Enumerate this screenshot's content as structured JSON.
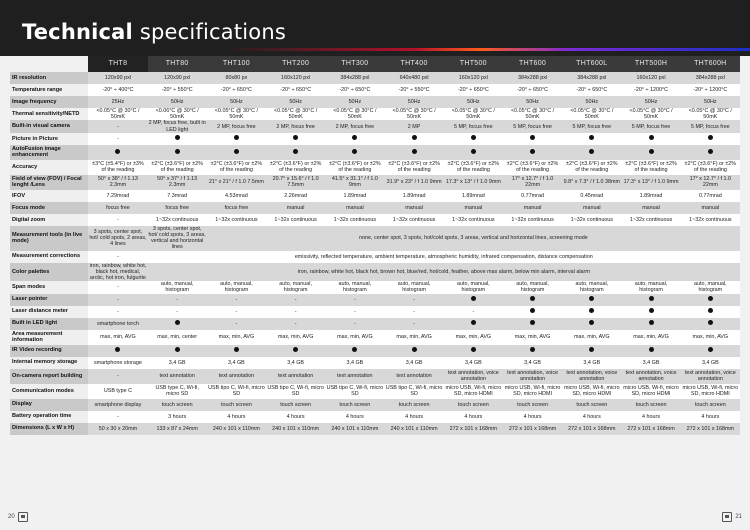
{
  "title_bold": "Technical",
  "title_light": " specifications",
  "models": [
    "THT8",
    "THT80",
    "THT100",
    "THT200",
    "THT300",
    "THT400",
    "THT500",
    "THT600",
    "THT600L",
    "THT500H",
    "THT600H"
  ],
  "rows": [
    {
      "label": "IR resolution",
      "cells": [
        "120x90 pxl",
        "120x90 pxl",
        "80x80 px",
        "160x120 pxl",
        "384x288 pxl",
        "640x480 pxl",
        "160x120 pxl",
        "384x288 pxl",
        "384x288 pxl",
        "160x120 pxl",
        "384x288 pxl"
      ]
    },
    {
      "label": "Temperature range",
      "cells": [
        "-20° ÷ 400°C",
        "-20° ÷ 550°C",
        "-20° ÷ 650°C",
        "-20° ÷ 650°C",
        "-20° ÷ 650°C",
        "-20° ÷ 550°C",
        "-20° ÷ 650°C",
        "-20° ÷ 650°C",
        "-20° ÷ 650°C",
        "-20° ÷ 1200°C",
        "-20° ÷ 1200°C"
      ]
    },
    {
      "label": "Image frequency",
      "cells": [
        "25Hz",
        "50Hz",
        "50Hz",
        "50Hz",
        "50Hz",
        "50Hz",
        "50Hz",
        "50Hz",
        "50Hz",
        "50Hz",
        "50Hz"
      ]
    },
    {
      "label": "Thermal sensitivity/NETD",
      "cells": [
        "<0.05°C @ 30°C / 50mK",
        "<0.06°C @ 30°C / 50mK",
        "<0.05°C @ 30°C / 50mK",
        "<0.05°C @ 30°C / 50mK",
        "<0.05°C @ 30°C / 50mK",
        "<0.05°C @ 30°C / 50mK",
        "<0.05°C @ 30°C / 50mK",
        "<0.05°C @ 30°C / 50mK",
        "<0.05°C @ 30°C / 50mK",
        "<0.05°C @ 30°C / 50mK",
        "<0.05°C @ 30°C / 50mK"
      ]
    },
    {
      "label": "Built-in visual camera",
      "cells": [
        "-",
        "2 MP, focus free, built in LED light",
        "2 MP, focus free",
        "2 MP, focus free",
        "2 MP, focus free",
        "2 MP",
        "5 MP, focus free",
        "5 MP, focus free",
        "5 MP, focus free",
        "5 MP, focus free",
        "5 MP, focus free"
      ]
    },
    {
      "label": "Picture in Picture",
      "cells": [
        "-",
        "●",
        "●",
        "●",
        "●",
        "●",
        "●",
        "●",
        "●",
        "●",
        "●"
      ]
    },
    {
      "label": "AutoFusion image enhancement",
      "cells": [
        "●",
        "●",
        "●",
        "●",
        "●",
        "●",
        "●",
        "●",
        "●",
        "●",
        "●"
      ]
    },
    {
      "label": "Accuracy",
      "cells": [
        "±3°C (±5.4°F) or ±3% of the reading",
        "±2°C (±3.6°F) or ±2% of the reading",
        "±2°C (±3.6°F) or ±2% of the reading",
        "±2°C (±3.6°F) or ±2% of the reading",
        "±2°C (±3.6°F) or ±2% of the reading",
        "±2°C (±3.6°F) or ±2% of the reading",
        "±2°C (±3.6°F) or ±2% of the reading",
        "±2°C (±3.6°F) or ±2% of the reading",
        "±2°C (±3.6°F) or ±2% of the reading",
        "±2°C (±3.6°F) or ±2% of the reading",
        "±2°C (±3.6°F) or ±2% of the reading"
      ]
    },
    {
      "label": "Field of view (FOV) / Focal lenght /Lens",
      "cells": [
        "50° x 38° / f 1.13 2.3mm",
        "50° x 37° / f 1.13 2.3mm",
        "21° x 21° / f 1.0 7.5mm",
        "20.7° x 15.6° / f 1.0 7.5mm",
        "41.5° x 31.1° / f 1.0 9mm",
        "31.9° x 23° / f 1.0 9mm",
        "17.3° x 13° / f 1.0 9mm",
        "17° x 12.7° / f 1.0 22mm",
        "9.8° x 7.3° / f 1.0 38mm",
        "17.3° x 13° / f 1.0 9mm",
        "17° x 12.7° / f 1.0 22mm"
      ]
    },
    {
      "label": "IFOV",
      "cells": [
        "7.29mrad",
        "7.3mrad",
        "4.53mrad",
        "2.26mrad",
        "1.89mrad",
        "1.89mrad",
        "1.89mrad",
        "0.77mrad",
        "0.45mrad",
        "1.89mrad",
        "0.77mrad"
      ]
    },
    {
      "label": "Focus mode",
      "cells": [
        "focus free",
        "focus free",
        "focus free",
        "manual",
        "manual",
        "manual",
        "manual",
        "manual",
        "manual",
        "manual",
        "manual"
      ]
    },
    {
      "label": "Digital zoom",
      "cells": [
        "-",
        "1~32x continuous",
        "1~32x continuous",
        "1~32x continuous",
        "1~32x continuous",
        "1~32x continuous",
        "1~32x continuous",
        "1~32x continuous",
        "1~32x continuous",
        "1~32x continuous",
        "1~32x continuous"
      ]
    },
    {
      "label": "Measurement tools (in live mode)",
      "cells": [
        "3 spots, center spot, hot/ cold spots, 2 areas, 4 lines",
        "3 spots, center spot, hot/ cold spots, 3 areas, vertical and horizontal lines"
      ],
      "span": "none, center spot, 3 spots, hot/cold spots, 3 areas, vertical and horizontal lines, screening mode"
    },
    {
      "label": "Measurement corrections",
      "cells": [
        "-"
      ],
      "span": "emissivity, reflected temperature, ambient temperature, atmospheric humidity, infrared compensation, distance compensation"
    },
    {
      "label": "Color palettes",
      "cells": [
        "iron, rainbow, white hot, black hot, medical, arctic, hot iron, fulgurite"
      ],
      "span": "iron, rainbow, white hot, black hot, brown hot, blue/red, hot/cold, feather, above max alarm, below min alarm, interval alarm"
    },
    {
      "label": "Span modes",
      "cells": [
        "-",
        "auto, manual, histogram",
        "auto, manual, histogram",
        "auto, manual, histogram",
        "auto, manual, histogram",
        "auto, manual, histogram",
        "auto, manual, histogram",
        "auto, manual, histogram",
        "auto, manual, histogram",
        "auto, manual, histogram",
        "auto, manual, histogram"
      ]
    },
    {
      "label": "Laser pointer",
      "cells": [
        "-",
        "-",
        "-",
        "-",
        "-",
        "-",
        "●",
        "●",
        "●",
        "●",
        "●"
      ]
    },
    {
      "label": "Laser distance meter",
      "cells": [
        "-",
        "-",
        "-",
        "-",
        "-",
        "-",
        "-",
        "●",
        "●",
        "●",
        "●"
      ]
    },
    {
      "label": "Built in LED light",
      "cells": [
        "smartphone torch",
        "●",
        "-",
        "-",
        "-",
        "-",
        "●",
        "●",
        "●",
        "●",
        "●"
      ]
    },
    {
      "label": "Area measurement information",
      "cells": [
        "max, min, AVG",
        "max, min, center",
        "max, min, AVG",
        "max, min, AVG",
        "max, min, AVG",
        "max, min, AVG",
        "max, min, AVG",
        "max, min, AVG",
        "max, min, AVG",
        "max, min, AVG",
        "max, min, AVG"
      ]
    },
    {
      "label": "IR Video recording",
      "cells": [
        "●",
        "●",
        "●",
        "●",
        "●",
        "●",
        "●",
        "●",
        "●",
        "●",
        "●"
      ]
    },
    {
      "label": "Internal memory storage",
      "cells": [
        "smartphone storage",
        "3,4 GB",
        "3,4 GB",
        "3,4 GB",
        "3,4 GB",
        "3,4 GB",
        "3,4 GB",
        "3,4 GB",
        "3,4 GB",
        "3,4 GB",
        "3,4 GB"
      ]
    },
    {
      "label": "On-camera report building",
      "cells": [
        "-",
        "text annotation",
        "text annotation",
        "text annotation",
        "text annotation",
        "text annotation",
        "text annotation, voice annotation",
        "text annotation, voice annotation",
        "text annotation, voice annotation",
        "text annotation, voice annotation",
        "text annotation, voice annotation"
      ]
    },
    {
      "label": "Communication modes",
      "cells": [
        "USB type C",
        "USB type C, Wi-fi, micro SD",
        "USB tipo C, Wi-fi, micro SD",
        "USB tipo C, Wi-fi, micro SD",
        "USB tipo C, Wi-fi, micro SD",
        "USB tipo C, Wi-fi, micro SD",
        "micro USB, Wi-fi, micro SD, micro HDMI",
        "micro USB, Wi-fi, micro SD, micro HDMI",
        "micro USB, Wi-fi, micro SD, micro HDMI",
        "micro USB, Wi-fi, micro SD, micro HDMI",
        "micro USB, Wi-fi, micro SD, micro HDMI"
      ]
    },
    {
      "label": "Display",
      "cells": [
        "smartphone display",
        "touch screen",
        "touch screen",
        "touch screen",
        "touch screen",
        "touch screen",
        "touch screen",
        "touch screen",
        "touch screen",
        "touch screen",
        "touch screen"
      ]
    },
    {
      "label": "Battery operation time",
      "cells": [
        "-",
        "3 hours",
        "4 hours",
        "4 hours",
        "4 hours",
        "4 hours",
        "4 hours",
        "4 hours",
        "4 hours",
        "4 hours",
        "4 hours"
      ]
    },
    {
      "label": "Dimensions (L x W x H)",
      "cells": [
        "50 x 30 x 20mm",
        "133 x 87 x 24mm",
        "240 x 101 x 110mm",
        "240 x 101 x 110mm",
        "240 x 101 x 110mm",
        "240 x 101 x 110mm",
        "272 x 101 x 168mm",
        "272 x 101 x 168mm",
        "272 x 101 x 168mm",
        "272 x 101 x 168mm",
        "272 x 101 x 168mm"
      ]
    }
  ],
  "page_left": "20",
  "page_right": "21"
}
